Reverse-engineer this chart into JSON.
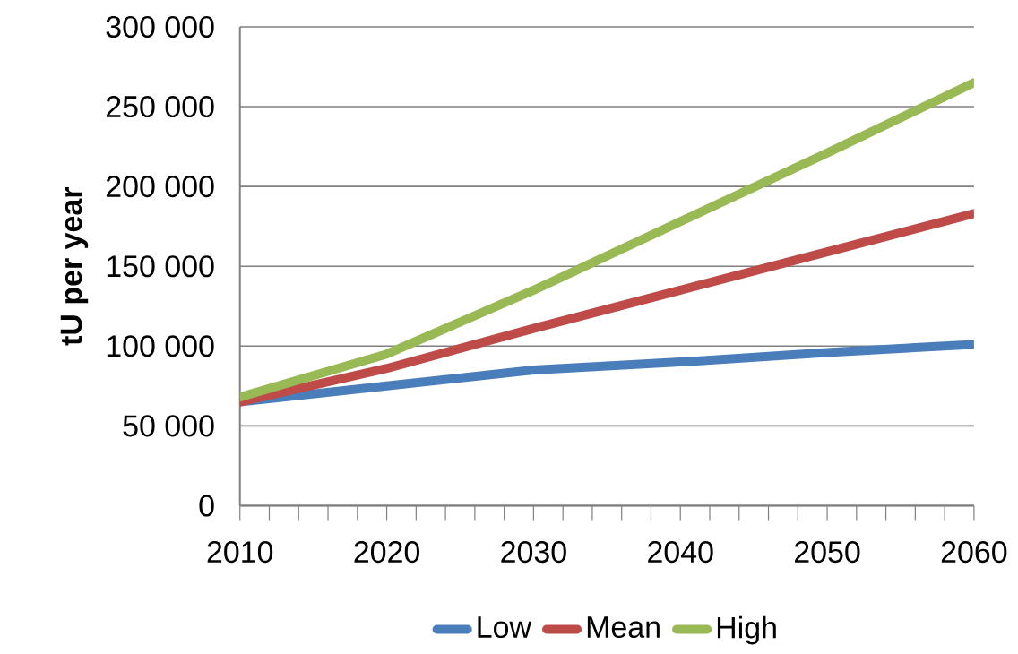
{
  "chart_data": {
    "type": "line",
    "ylabel": "tU per year",
    "x": [
      2010,
      2020,
      2030,
      2040,
      2050,
      2060
    ],
    "series": [
      {
        "name": "Low",
        "color": "#4a7ebb",
        "values": [
          65000,
          75000,
          85000,
          90000,
          96000,
          101000
        ]
      },
      {
        "name": "Mean",
        "color": "#be4b48",
        "values": [
          65000,
          86000,
          111000,
          135000,
          159000,
          183000
        ]
      },
      {
        "name": "High",
        "color": "#98b954",
        "values": [
          68000,
          95000,
          135000,
          178000,
          221000,
          265000
        ]
      }
    ],
    "xlim": [
      2010,
      2060
    ],
    "xticks": [
      2010,
      2020,
      2030,
      2040,
      2050,
      2060
    ],
    "ylim": [
      0,
      300000
    ],
    "yticks": [
      0,
      {
        "value": 50000,
        "label": "50 000"
      },
      {
        "value": 100000,
        "label": "100 000"
      },
      {
        "value": 150000,
        "label": "150 000"
      },
      {
        "value": 200000,
        "label": "200 000"
      },
      {
        "value": 250000,
        "label": "250 000"
      },
      {
        "value": 300000,
        "label": "300 000"
      }
    ],
    "grid": "y",
    "legend": "bottom"
  }
}
